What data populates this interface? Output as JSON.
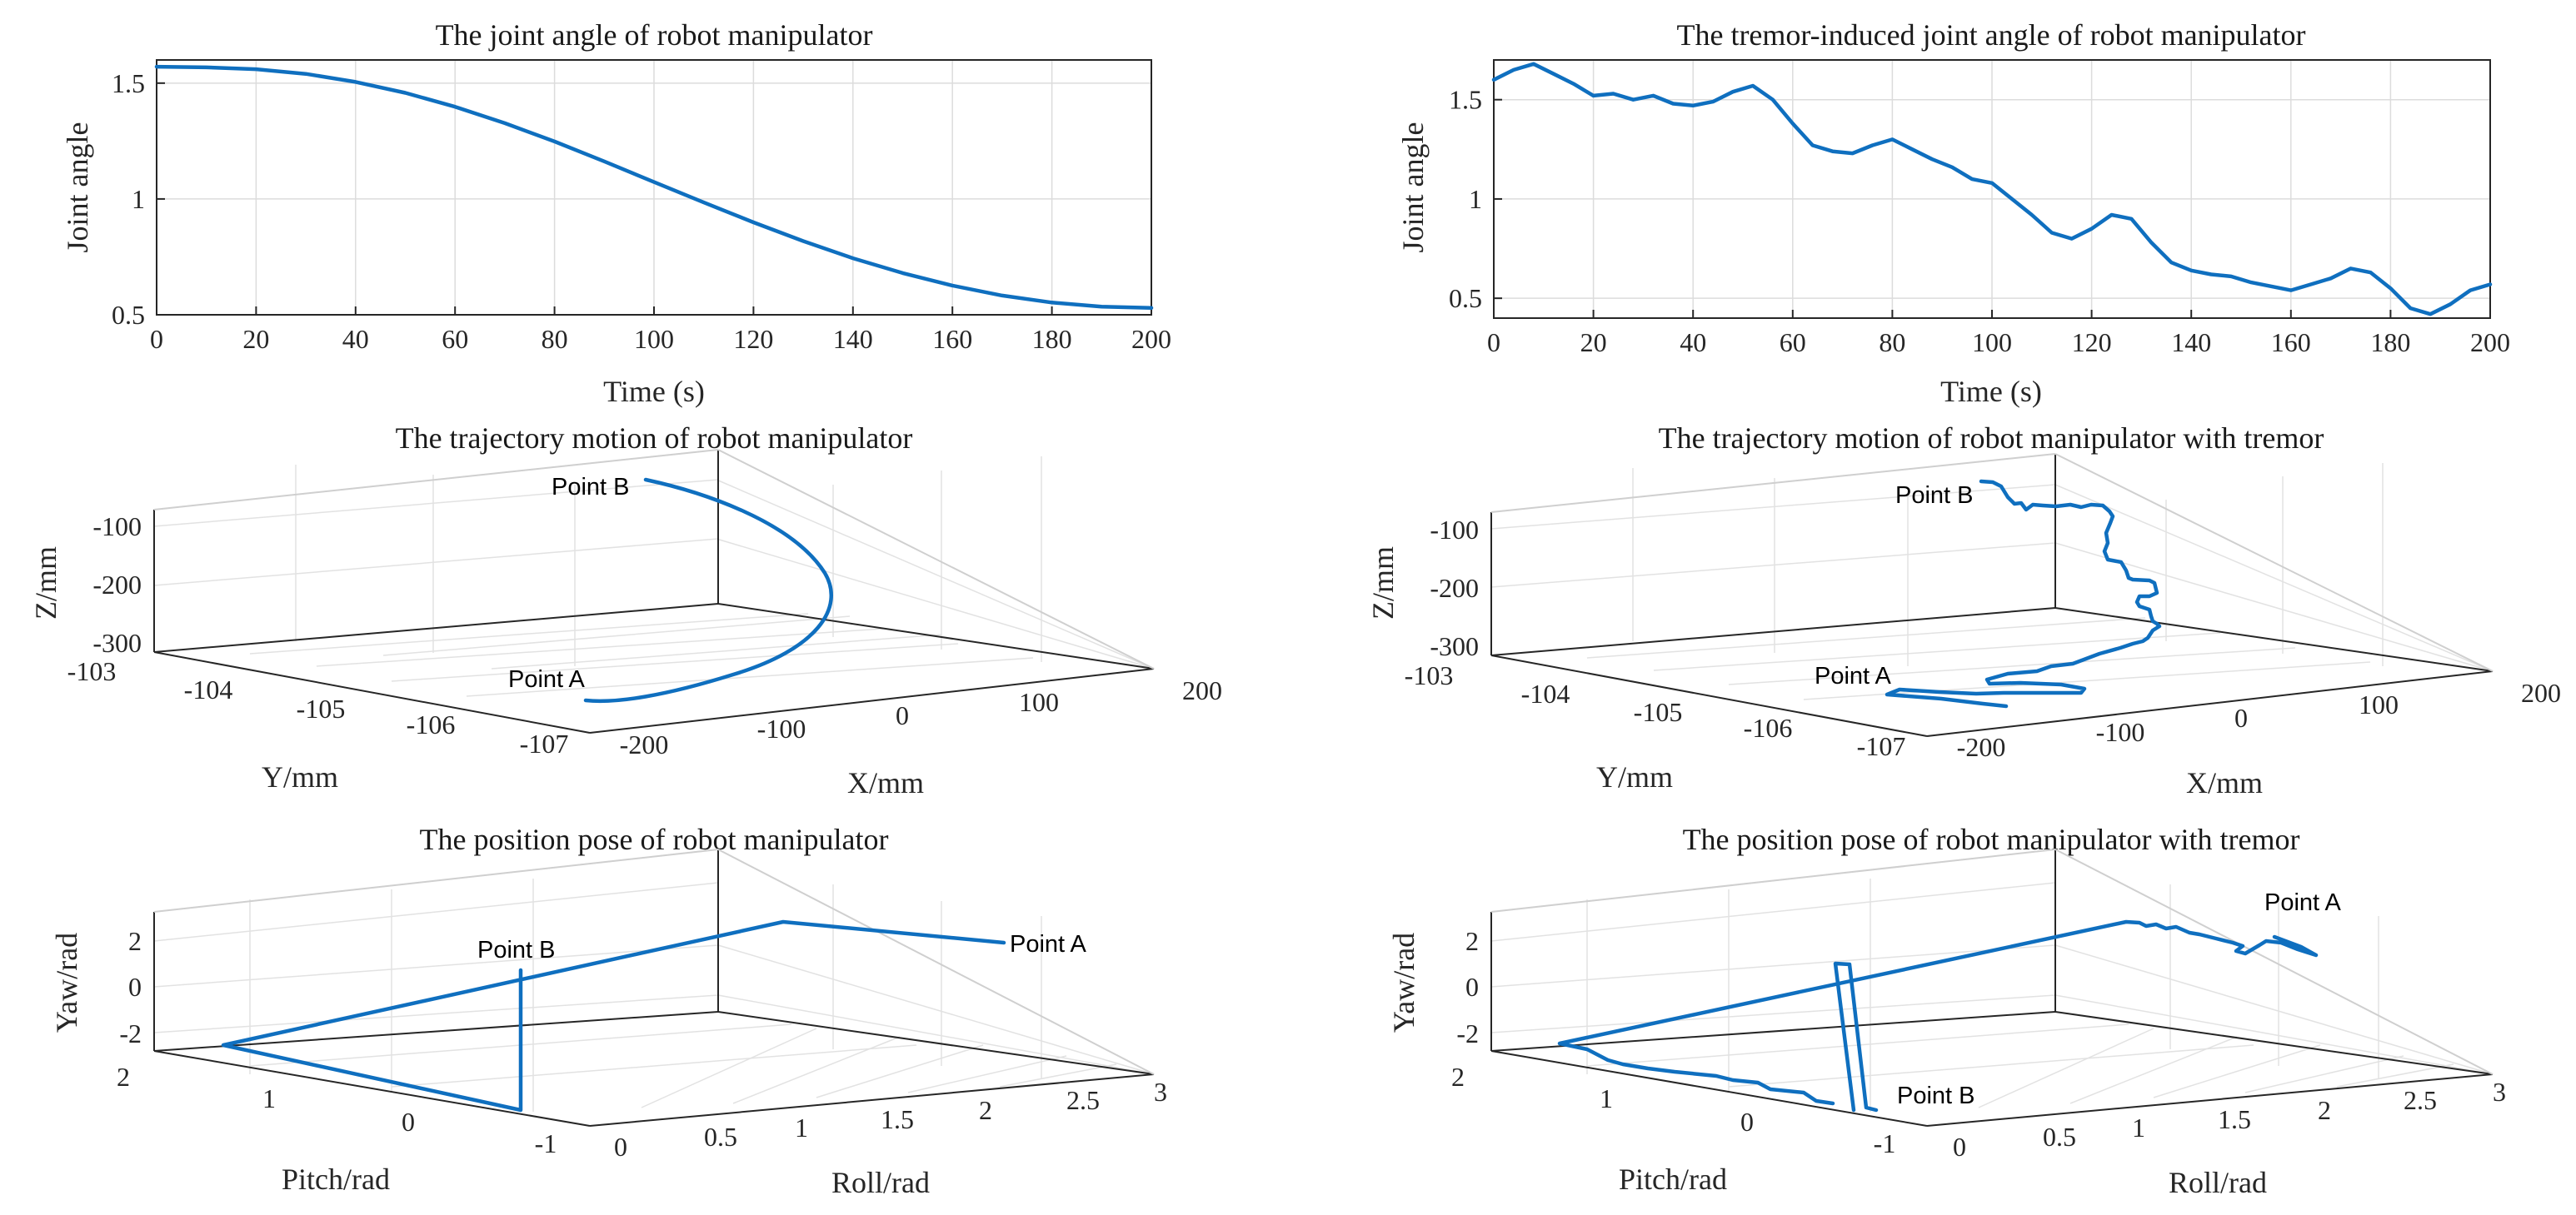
{
  "colors": {
    "series": "#0f6fbf",
    "axis": "#262626",
    "grid": "#dcdcdc"
  },
  "chart_data": [
    {
      "id": "p1",
      "type": "line",
      "title": "The joint angle of robot manipulator",
      "xlabel": "Time (s)",
      "ylabel": "Joint angle",
      "xlim": [
        0,
        200
      ],
      "ylim": [
        0.5,
        1.6
      ],
      "xticks": [
        "0",
        "20",
        "40",
        "60",
        "80",
        "100",
        "120",
        "140",
        "160",
        "180",
        "200"
      ],
      "yticks": [
        "0.5",
        "1",
        "1.5"
      ],
      "x": [
        0,
        10,
        20,
        30,
        40,
        50,
        60,
        70,
        80,
        90,
        100,
        110,
        120,
        130,
        140,
        150,
        160,
        170,
        180,
        190,
        200
      ],
      "y": [
        1.571,
        1.568,
        1.56,
        1.54,
        1.505,
        1.458,
        1.398,
        1.327,
        1.248,
        1.162,
        1.073,
        0.985,
        0.899,
        0.818,
        0.744,
        0.68,
        0.626,
        0.583,
        0.553,
        0.535,
        0.53
      ]
    },
    {
      "id": "p2",
      "type": "line",
      "title": "The tremor-induced joint angle of robot manipulator",
      "xlabel": "Time (s)",
      "ylabel": "Joint angle",
      "xlim": [
        0,
        200
      ],
      "ylim": [
        0.4,
        1.7
      ],
      "xticks": [
        "0",
        "20",
        "40",
        "60",
        "80",
        "100",
        "120",
        "140",
        "160",
        "180",
        "200"
      ],
      "yticks": [
        "0.5",
        "1",
        "1.5"
      ],
      "x": [
        0,
        4,
        8,
        12,
        16,
        20,
        24,
        28,
        32,
        36,
        40,
        44,
        48,
        52,
        56,
        60,
        64,
        68,
        72,
        76,
        80,
        84,
        88,
        92,
        96,
        100,
        104,
        108,
        112,
        116,
        120,
        124,
        128,
        132,
        136,
        140,
        144,
        148,
        152,
        156,
        160,
        164,
        168,
        172,
        176,
        180,
        184,
        188,
        192,
        196,
        200
      ],
      "y": [
        1.6,
        1.65,
        1.68,
        1.63,
        1.58,
        1.52,
        1.53,
        1.5,
        1.52,
        1.48,
        1.47,
        1.49,
        1.54,
        1.57,
        1.5,
        1.38,
        1.27,
        1.24,
        1.23,
        1.27,
        1.3,
        1.25,
        1.2,
        1.16,
        1.1,
        1.08,
        1.0,
        0.92,
        0.83,
        0.8,
        0.85,
        0.92,
        0.9,
        0.78,
        0.68,
        0.64,
        0.62,
        0.61,
        0.58,
        0.56,
        0.54,
        0.57,
        0.6,
        0.65,
        0.63,
        0.55,
        0.45,
        0.42,
        0.47,
        0.54,
        0.57
      ]
    },
    {
      "id": "p3",
      "type": "line3d",
      "title": "The trajectory motion of robot manipulator",
      "xlabel": "X/mm",
      "ylabel": "Y/mm",
      "zlabel": "Z/mm",
      "xticks": [
        "-200",
        "-100",
        "0",
        "100",
        "200"
      ],
      "yticks": [
        "-103",
        "-104",
        "-105",
        "-106",
        "-107"
      ],
      "zticks": [
        "-100",
        "-200",
        "-300"
      ],
      "annotations": [
        "Point B",
        "Point A"
      ]
    },
    {
      "id": "p4",
      "type": "line3d",
      "title": "The trajectory motion of robot manipulator with tremor",
      "xlabel": "X/mm",
      "ylabel": "Y/mm",
      "zlabel": "Z/mm",
      "xticks": [
        "-200",
        "-100",
        "0",
        "100",
        "200"
      ],
      "yticks": [
        "-103",
        "-104",
        "-105",
        "-106",
        "-107"
      ],
      "zticks": [
        "-100",
        "-200",
        "-300"
      ],
      "annotations": [
        "Point B",
        "Point A"
      ]
    },
    {
      "id": "p5",
      "type": "line3d",
      "title": "The position pose of robot manipulator",
      "xlabel": "Roll/rad",
      "ylabel": "Pitch/rad",
      "zlabel": "Yaw/rad",
      "xticks": [
        "0",
        "0.5",
        "1",
        "1.5",
        "2",
        "2.5",
        "3"
      ],
      "yticks": [
        "2",
        "1",
        "0",
        "-1"
      ],
      "zticks": [
        "2",
        "0",
        "-2"
      ],
      "annotations": [
        "Point B",
        "Point A"
      ]
    },
    {
      "id": "p6",
      "type": "line3d",
      "title": "The position pose of robot manipulator with tremor",
      "xlabel": "Roll/rad",
      "ylabel": "Pitch/rad",
      "zlabel": "Yaw/rad",
      "xticks": [
        "0",
        "0.5",
        "1",
        "1.5",
        "2",
        "2.5",
        "3"
      ],
      "yticks": [
        "2",
        "1",
        "0",
        "-1"
      ],
      "zticks": [
        "2",
        "0",
        "-2"
      ],
      "annotations": [
        "Point A",
        "Point B"
      ]
    }
  ]
}
